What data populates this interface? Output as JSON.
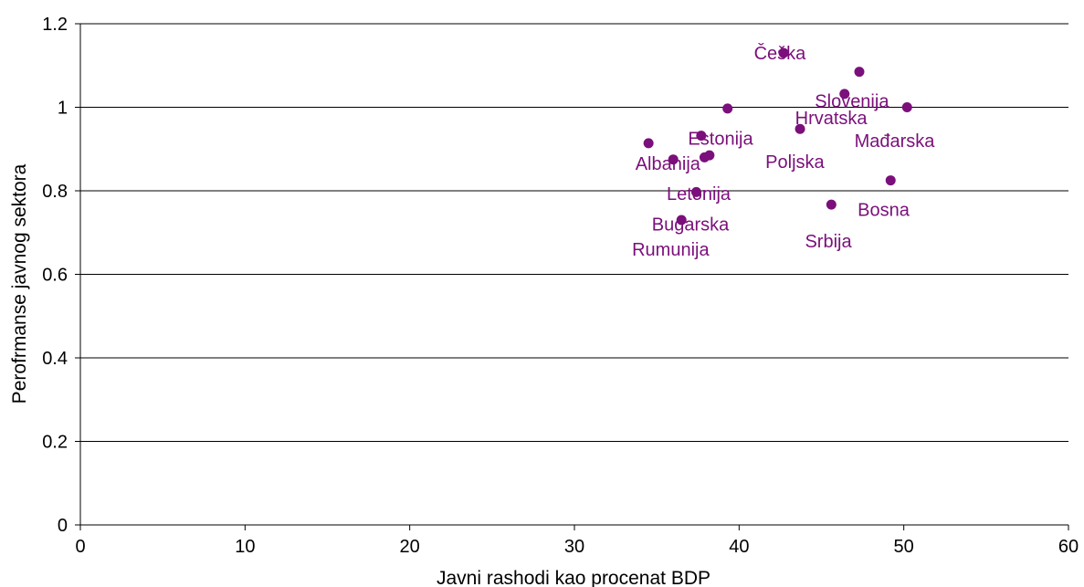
{
  "chart_data": {
    "type": "scatter",
    "xlabel": "Javni rashodi kao procenat BDP",
    "ylabel": "Perofrmanse javnog sektora",
    "xlim": [
      0,
      60
    ],
    "ylim": [
      0,
      1.2
    ],
    "xticks": [
      0,
      10,
      20,
      30,
      40,
      50,
      60
    ],
    "yticks": [
      "0",
      "0.2",
      "0.4",
      "0.6",
      "0.8",
      "1",
      "1.2"
    ],
    "grid": "horizontal",
    "point_color": "#7b0f7b",
    "points": [
      {
        "x": 42.7,
        "y": 1.13
      },
      {
        "x": 47.3,
        "y": 1.085
      },
      {
        "x": 46.4,
        "y": 1.032
      },
      {
        "x": 50.2,
        "y": 1.0
      },
      {
        "x": 39.3,
        "y": 0.997
      },
      {
        "x": 43.7,
        "y": 0.948
      },
      {
        "x": 37.7,
        "y": 0.932
      },
      {
        "x": 34.5,
        "y": 0.914
      },
      {
        "x": 38.2,
        "y": 0.885
      },
      {
        "x": 37.9,
        "y": 0.88
      },
      {
        "x": 36.0,
        "y": 0.875
      },
      {
        "x": 49.2,
        "y": 0.825
      },
      {
        "x": 37.4,
        "y": 0.797
      },
      {
        "x": 45.6,
        "y": 0.767
      },
      {
        "x": 36.5,
        "y": 0.73
      }
    ],
    "labels": [
      {
        "text": "Češka",
        "x": 40.9,
        "y": 1.115
      },
      {
        "text": "Slovenija",
        "x": 44.6,
        "y": 1.0
      },
      {
        "text": "Hrvatska",
        "x": 43.4,
        "y": 0.96
      },
      {
        "text": "Mađarska",
        "x": 47.0,
        "y": 0.905
      },
      {
        "text": "Estonija",
        "x": 36.9,
        "y": 0.91
      },
      {
        "text": "Poljska",
        "x": 41.6,
        "y": 0.855
      },
      {
        "text": "Albanija",
        "x": 33.7,
        "y": 0.85
      },
      {
        "text": "Letonija",
        "x": 35.6,
        "y": 0.778
      },
      {
        "text": "Bosna",
        "x": 47.2,
        "y": 0.74
      },
      {
        "text": "Bugarska",
        "x": 34.7,
        "y": 0.705
      },
      {
        "text": "Srbija",
        "x": 44.0,
        "y": 0.665
      },
      {
        "text": "Rumunija",
        "x": 33.5,
        "y": 0.645
      }
    ]
  }
}
